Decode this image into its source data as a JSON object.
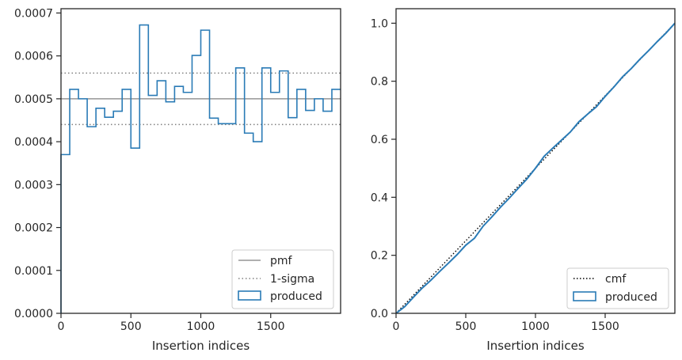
{
  "chart_data": [
    {
      "type": "histogram-step",
      "xlabel": "Insertion indices",
      "ylabel": "",
      "xlim": [
        0,
        2000
      ],
      "ylim": [
        0,
        0.00071
      ],
      "x_ticks": [
        "0",
        "500",
        "1000",
        "1500"
      ],
      "x_tick_values": [
        0,
        500,
        1000,
        1500
      ],
      "y_ticks": [
        "0.0000",
        "0.0001",
        "0.0002",
        "0.0003",
        "0.0004",
        "0.0005",
        "0.0006",
        "0.0007"
      ],
      "y_tick_values": [
        0,
        0.0001,
        0.0002,
        0.0003,
        0.0004,
        0.0005,
        0.0006,
        0.0007
      ],
      "pmf": 0.0005,
      "sigma_band": [
        0.00044,
        0.00056
      ],
      "bin_width": 62.5,
      "series": [
        {
          "name": "produced",
          "color": "#2a7bb6",
          "values": [
            0.00037,
            0.000522,
            0.0005,
            0.000435,
            0.000478,
            0.000457,
            0.000471,
            0.000522,
            0.000385,
            0.000672,
            0.000508,
            0.000542,
            0.000493,
            0.000529,
            0.000515,
            0.000601,
            0.00066,
            0.000455,
            0.000442,
            0.000442,
            0.000572,
            0.00042,
            0.0004,
            0.000572,
            0.000515,
            0.000565,
            0.000456,
            0.000522,
            0.000473,
            0.0005,
            0.000471,
            0.000522
          ]
        }
      ],
      "legend": {
        "position": "lower right",
        "entries": [
          {
            "label": "pmf",
            "style": "solid-line",
            "color": "#808080"
          },
          {
            "label": "1-sigma",
            "style": "dotted-line",
            "color": "#808080"
          },
          {
            "label": "produced",
            "style": "box",
            "color": "#2a7bb6"
          }
        ]
      }
    },
    {
      "type": "line",
      "xlabel": "Insertion indices",
      "ylabel": "",
      "xlim": [
        0,
        2000
      ],
      "ylim": [
        0,
        1.05
      ],
      "x_ticks": [
        "0",
        "500",
        "1000",
        "1500"
      ],
      "x_tick_values": [
        0,
        500,
        1000,
        1500
      ],
      "y_ticks": [
        "0.0",
        "0.2",
        "0.4",
        "0.6",
        "0.8",
        "1.0"
      ],
      "y_tick_values": [
        0,
        0.2,
        0.4,
        0.6,
        0.8,
        1.0
      ],
      "series": [
        {
          "name": "cmf",
          "color": "#000000",
          "style": "dotted",
          "x": [
            0,
            2000
          ],
          "y": [
            0,
            1.0
          ]
        },
        {
          "name": "produced",
          "color": "#2a7bb6",
          "style": "solid",
          "x": [
            0,
            62.5,
            125,
            187.5,
            250,
            312.5,
            375,
            437.5,
            500,
            562.5,
            625,
            687.5,
            750,
            812.5,
            875,
            937.5,
            1000,
            1062.5,
            1125,
            1187.5,
            1250,
            1312.5,
            1375,
            1437.5,
            1500,
            1562.5,
            1625,
            1687.5,
            1750,
            1812.5,
            1875,
            1937.5,
            2000
          ],
          "y": [
            0,
            0.0231,
            0.0558,
            0.087,
            0.1142,
            0.1441,
            0.1727,
            0.2021,
            0.2348,
            0.2588,
            0.3008,
            0.3326,
            0.3664,
            0.3972,
            0.4303,
            0.4625,
            0.5001,
            0.5413,
            0.5698,
            0.5974,
            0.625,
            0.6608,
            0.687,
            0.712,
            0.7478,
            0.78,
            0.8153,
            0.8438,
            0.8764,
            0.9059,
            0.9372,
            0.9666,
            1.0
          ]
        }
      ],
      "legend": {
        "position": "lower right",
        "entries": [
          {
            "label": "cmf",
            "style": "dotted-line",
            "color": "#000000"
          },
          {
            "label": "produced",
            "style": "box",
            "color": "#2a7bb6"
          }
        ]
      }
    }
  ]
}
